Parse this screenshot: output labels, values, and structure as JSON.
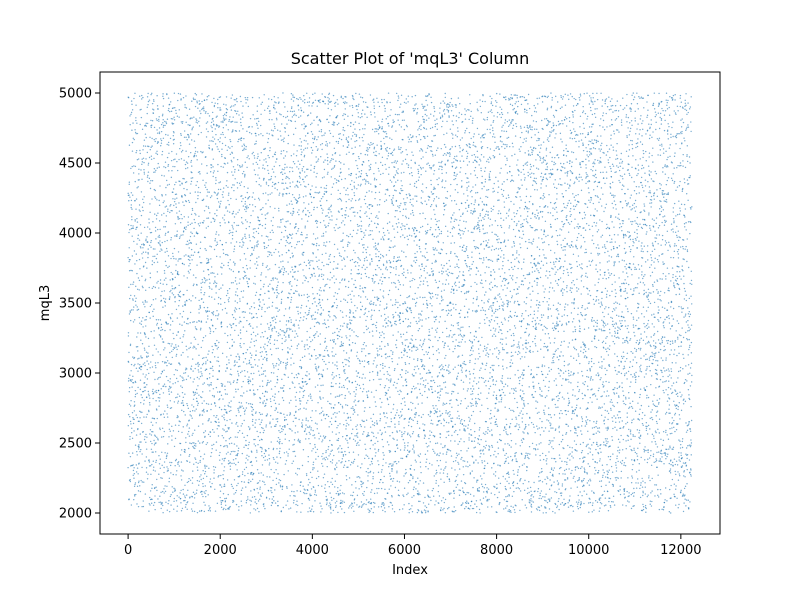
{
  "chart_data": {
    "type": "scatter",
    "title": "Scatter Plot of 'mqL3' Column",
    "xlabel": "Index",
    "ylabel": "mqL3",
    "xlim": [
      -610,
      12850
    ],
    "ylim": [
      1850,
      5150
    ],
    "xticks": [
      0,
      2000,
      4000,
      6000,
      8000,
      10000,
      12000
    ],
    "yticks": [
      2000,
      2500,
      3000,
      3500,
      4000,
      4500,
      5000
    ],
    "xtick_labels": [
      "0",
      "2000",
      "4000",
      "6000",
      "8000",
      "10000",
      "12000"
    ],
    "ytick_labels": [
      "2000",
      "2500",
      "3000",
      "3500",
      "4000",
      "4500",
      "5000"
    ],
    "grid": false,
    "series": [
      {
        "color": "#1f77b4",
        "marker_alpha": 0.6,
        "n_points": 12240,
        "x_range": [
          0,
          12239
        ],
        "y_range": [
          2000,
          5000
        ],
        "distribution": "uniform noise over index range"
      }
    ]
  }
}
